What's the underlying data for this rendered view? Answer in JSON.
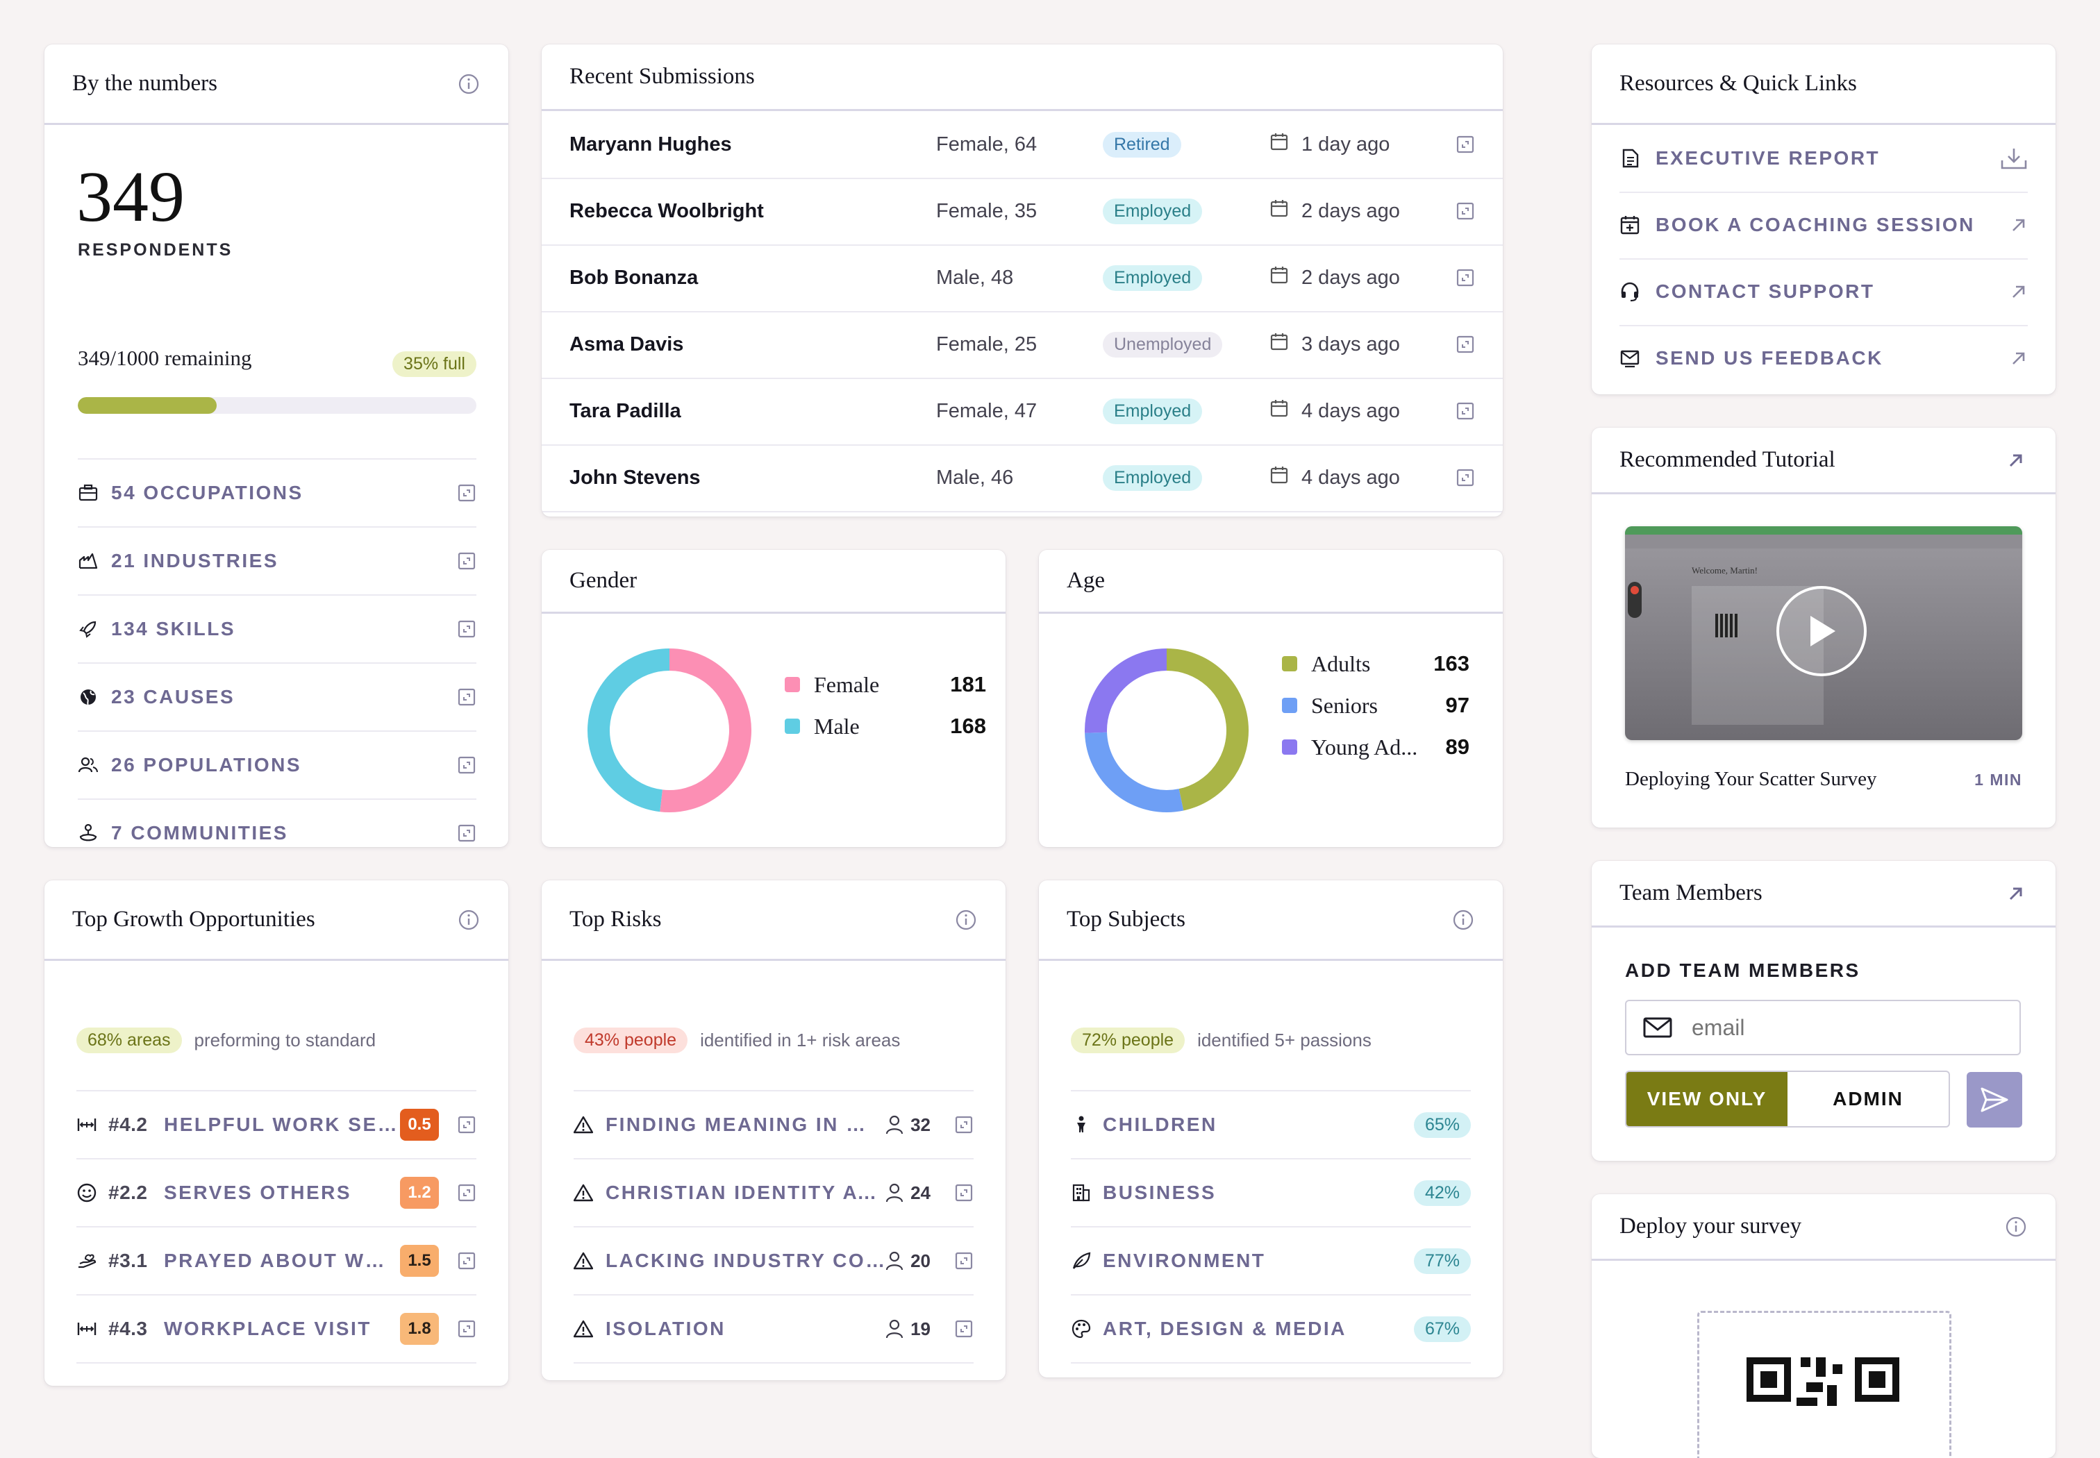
{
  "by_numbers": {
    "title": "By the numbers",
    "count": "349",
    "count_label": "RESPONDENTS",
    "remaining": "349/1000 remaining",
    "full_badge": "35% full",
    "progress": 0.349,
    "items": [
      {
        "icon": "briefcase-icon",
        "label": "54 OCCUPATIONS"
      },
      {
        "icon": "factory-icon",
        "label": "21 INDUSTRIES"
      },
      {
        "icon": "rocket-icon",
        "label": "134 SKILLS"
      },
      {
        "icon": "globe-icon",
        "label": "23 CAUSES"
      },
      {
        "icon": "users-icon",
        "label": "26 POPULATIONS"
      },
      {
        "icon": "community-icon",
        "label": "7 COMMUNITIES"
      }
    ]
  },
  "submissions": {
    "title": "Recent Submissions",
    "rows": [
      {
        "name": "Maryann Hughes",
        "demo": "Female, 64",
        "status": "Retired",
        "kind": "ret",
        "when": "1 day ago"
      },
      {
        "name": "Rebecca Woolbright",
        "demo": "Female, 35",
        "status": "Employed",
        "kind": "emp",
        "when": "2 days ago"
      },
      {
        "name": "Bob Bonanza",
        "demo": "Male, 48",
        "status": "Employed",
        "kind": "emp",
        "when": "2 days ago"
      },
      {
        "name": "Asma Davis",
        "demo": "Female, 25",
        "status": "Unemployed",
        "kind": "unemp",
        "when": "3 days ago"
      },
      {
        "name": "Tara Padilla",
        "demo": "Female, 47",
        "status": "Employed",
        "kind": "emp",
        "when": "4 days ago"
      },
      {
        "name": "John Stevens",
        "demo": "Male, 46",
        "status": "Employed",
        "kind": "emp",
        "when": "4 days ago"
      }
    ]
  },
  "gender": {
    "title": "Gender",
    "series": [
      {
        "label": "Female",
        "value": 181,
        "color": "#fc8fb4"
      },
      {
        "label": "Male",
        "value": 168,
        "color": "#5fcde3"
      }
    ]
  },
  "age": {
    "title": "Age",
    "series": [
      {
        "label": "Adults",
        "value": 163,
        "color": "#aab547"
      },
      {
        "label": "Seniors",
        "value": 97,
        "color": "#6e9ff5"
      },
      {
        "label": "Young Ad...",
        "value": 89,
        "color": "#8b78f0"
      }
    ]
  },
  "growth": {
    "title": "Top Growth Opportunities",
    "badge": "68% areas",
    "summary": "preforming to standard",
    "items": [
      {
        "icon": "ruler-icon",
        "code": "#4.2",
        "label": "HELPFUL WORK SERM...",
        "score": "0.5",
        "bg": "#e35d1e",
        "fg": "#ffffff"
      },
      {
        "icon": "smile-icon",
        "code": "#2.2",
        "label": "SERVES OTHERS",
        "score": "1.2",
        "bg": "#f79a62",
        "fg": "#ffffff"
      },
      {
        "icon": "hands-icon",
        "code": "#3.1",
        "label": "PRAYED ABOUT WORK",
        "score": "1.5",
        "bg": "#f8ad6c",
        "fg": "#2a2018"
      },
      {
        "icon": "ruler-icon",
        "code": "#4.3",
        "label": "WORKPLACE VISIT",
        "score": "1.8",
        "bg": "#f8b878",
        "fg": "#2a2018"
      }
    ]
  },
  "risks": {
    "title": "Top Risks",
    "badge": "43% people",
    "summary": "identified in 1+ risk areas",
    "items": [
      {
        "label": "FINDING MEANING IN WORK",
        "count": "32"
      },
      {
        "label": "CHRISTIAN IDENTITY AT W...",
        "count": "24"
      },
      {
        "label": "LACKING INDUSTRY CONN...",
        "count": "20"
      },
      {
        "label": "ISOLATION",
        "count": "19"
      }
    ]
  },
  "subjects": {
    "title": "Top Subjects",
    "badge": "72% people",
    "summary": "identified 5+ passions",
    "items": [
      {
        "icon": "child-icon",
        "label": "CHILDREN",
        "pct": "65%"
      },
      {
        "icon": "building-icon",
        "label": "BUSINESS",
        "pct": "42%"
      },
      {
        "icon": "leaf-icon",
        "label": "ENVIRONMENT",
        "pct": "77%"
      },
      {
        "icon": "palette-icon",
        "label": "ART, DESIGN & MEDIA",
        "pct": "67%"
      }
    ]
  },
  "resources": {
    "title": "Resources & Quick Links",
    "items": [
      {
        "icon": "document-icon",
        "label": "EXECUTIVE REPORT",
        "action": "download-icon"
      },
      {
        "icon": "calendar-plus-icon",
        "label": "BOOK A COACHING SESSION",
        "action": "arrow-up-right-icon"
      },
      {
        "icon": "headset-icon",
        "label": "CONTACT SUPPORT",
        "action": "arrow-up-right-icon"
      },
      {
        "icon": "feedback-icon",
        "label": "SEND US FEEDBACK",
        "action": "arrow-up-right-icon"
      }
    ]
  },
  "tutorial": {
    "title": "Recommended Tutorial",
    "video_title": "Deploying Your Scatter Survey",
    "duration": "1 MIN",
    "thumb_greeting": "Welcome, Martin!"
  },
  "team": {
    "title": "Team Members",
    "add_label": "ADD TEAM MEMBERS",
    "email_placeholder": "email",
    "roles": [
      "VIEW ONLY",
      "ADMIN"
    ],
    "active_role": "VIEW ONLY"
  },
  "deploy": {
    "title": "Deploy your survey"
  },
  "colors": {
    "accent_olive": "#7a7b14",
    "purple_text": "#6e6992",
    "send_button": "#9a98c8"
  }
}
